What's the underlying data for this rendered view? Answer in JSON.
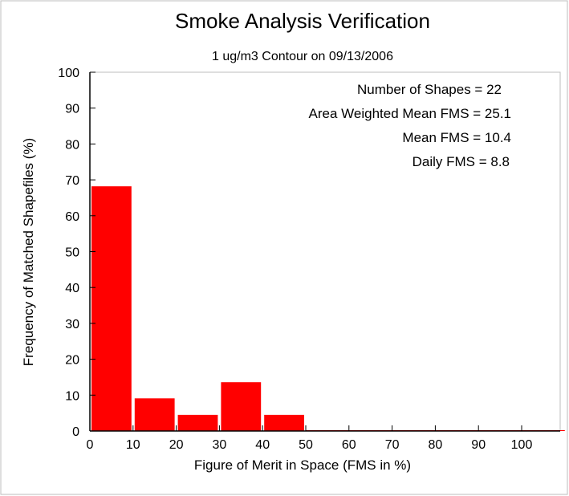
{
  "chart_data": {
    "type": "bar",
    "title": "Smoke Analysis Verification",
    "subtitle": "1 ug/m3 Contour on 09/13/2006",
    "xlabel": "Figure of Merit in Space (FMS in %)",
    "ylabel": "Frequency of Matched Shapefiles (%)",
    "xlim": [
      0,
      110
    ],
    "ylim": [
      0,
      100
    ],
    "x_ticks": [
      "0",
      "10",
      "20",
      "30",
      "40",
      "50",
      "60",
      "70",
      "80",
      "90",
      "100"
    ],
    "y_ticks": [
      "0",
      "10",
      "20",
      "30",
      "40",
      "50",
      "60",
      "70",
      "80",
      "90",
      "100"
    ],
    "bins": [
      {
        "from": 0,
        "to": 10,
        "value": 68.2
      },
      {
        "from": 10,
        "to": 20,
        "value": 9.1
      },
      {
        "from": 20,
        "to": 30,
        "value": 4.5
      },
      {
        "from": 30,
        "to": 40,
        "value": 13.6
      },
      {
        "from": 40,
        "to": 50,
        "value": 4.5
      },
      {
        "from": 50,
        "to": 60,
        "value": 0
      },
      {
        "from": 60,
        "to": 70,
        "value": 0
      },
      {
        "from": 70,
        "to": 80,
        "value": 0
      },
      {
        "from": 80,
        "to": 90,
        "value": 0
      },
      {
        "from": 90,
        "to": 100,
        "value": 0
      },
      {
        "from": 100,
        "to": 110,
        "value": 0
      }
    ],
    "bar_color": "#ff0000",
    "grid": false,
    "annotations": [
      "Number of Shapes = 22",
      "Area Weighted Mean FMS = 25.1",
      "Mean FMS = 10.4",
      "Daily FMS = 8.8"
    ]
  }
}
